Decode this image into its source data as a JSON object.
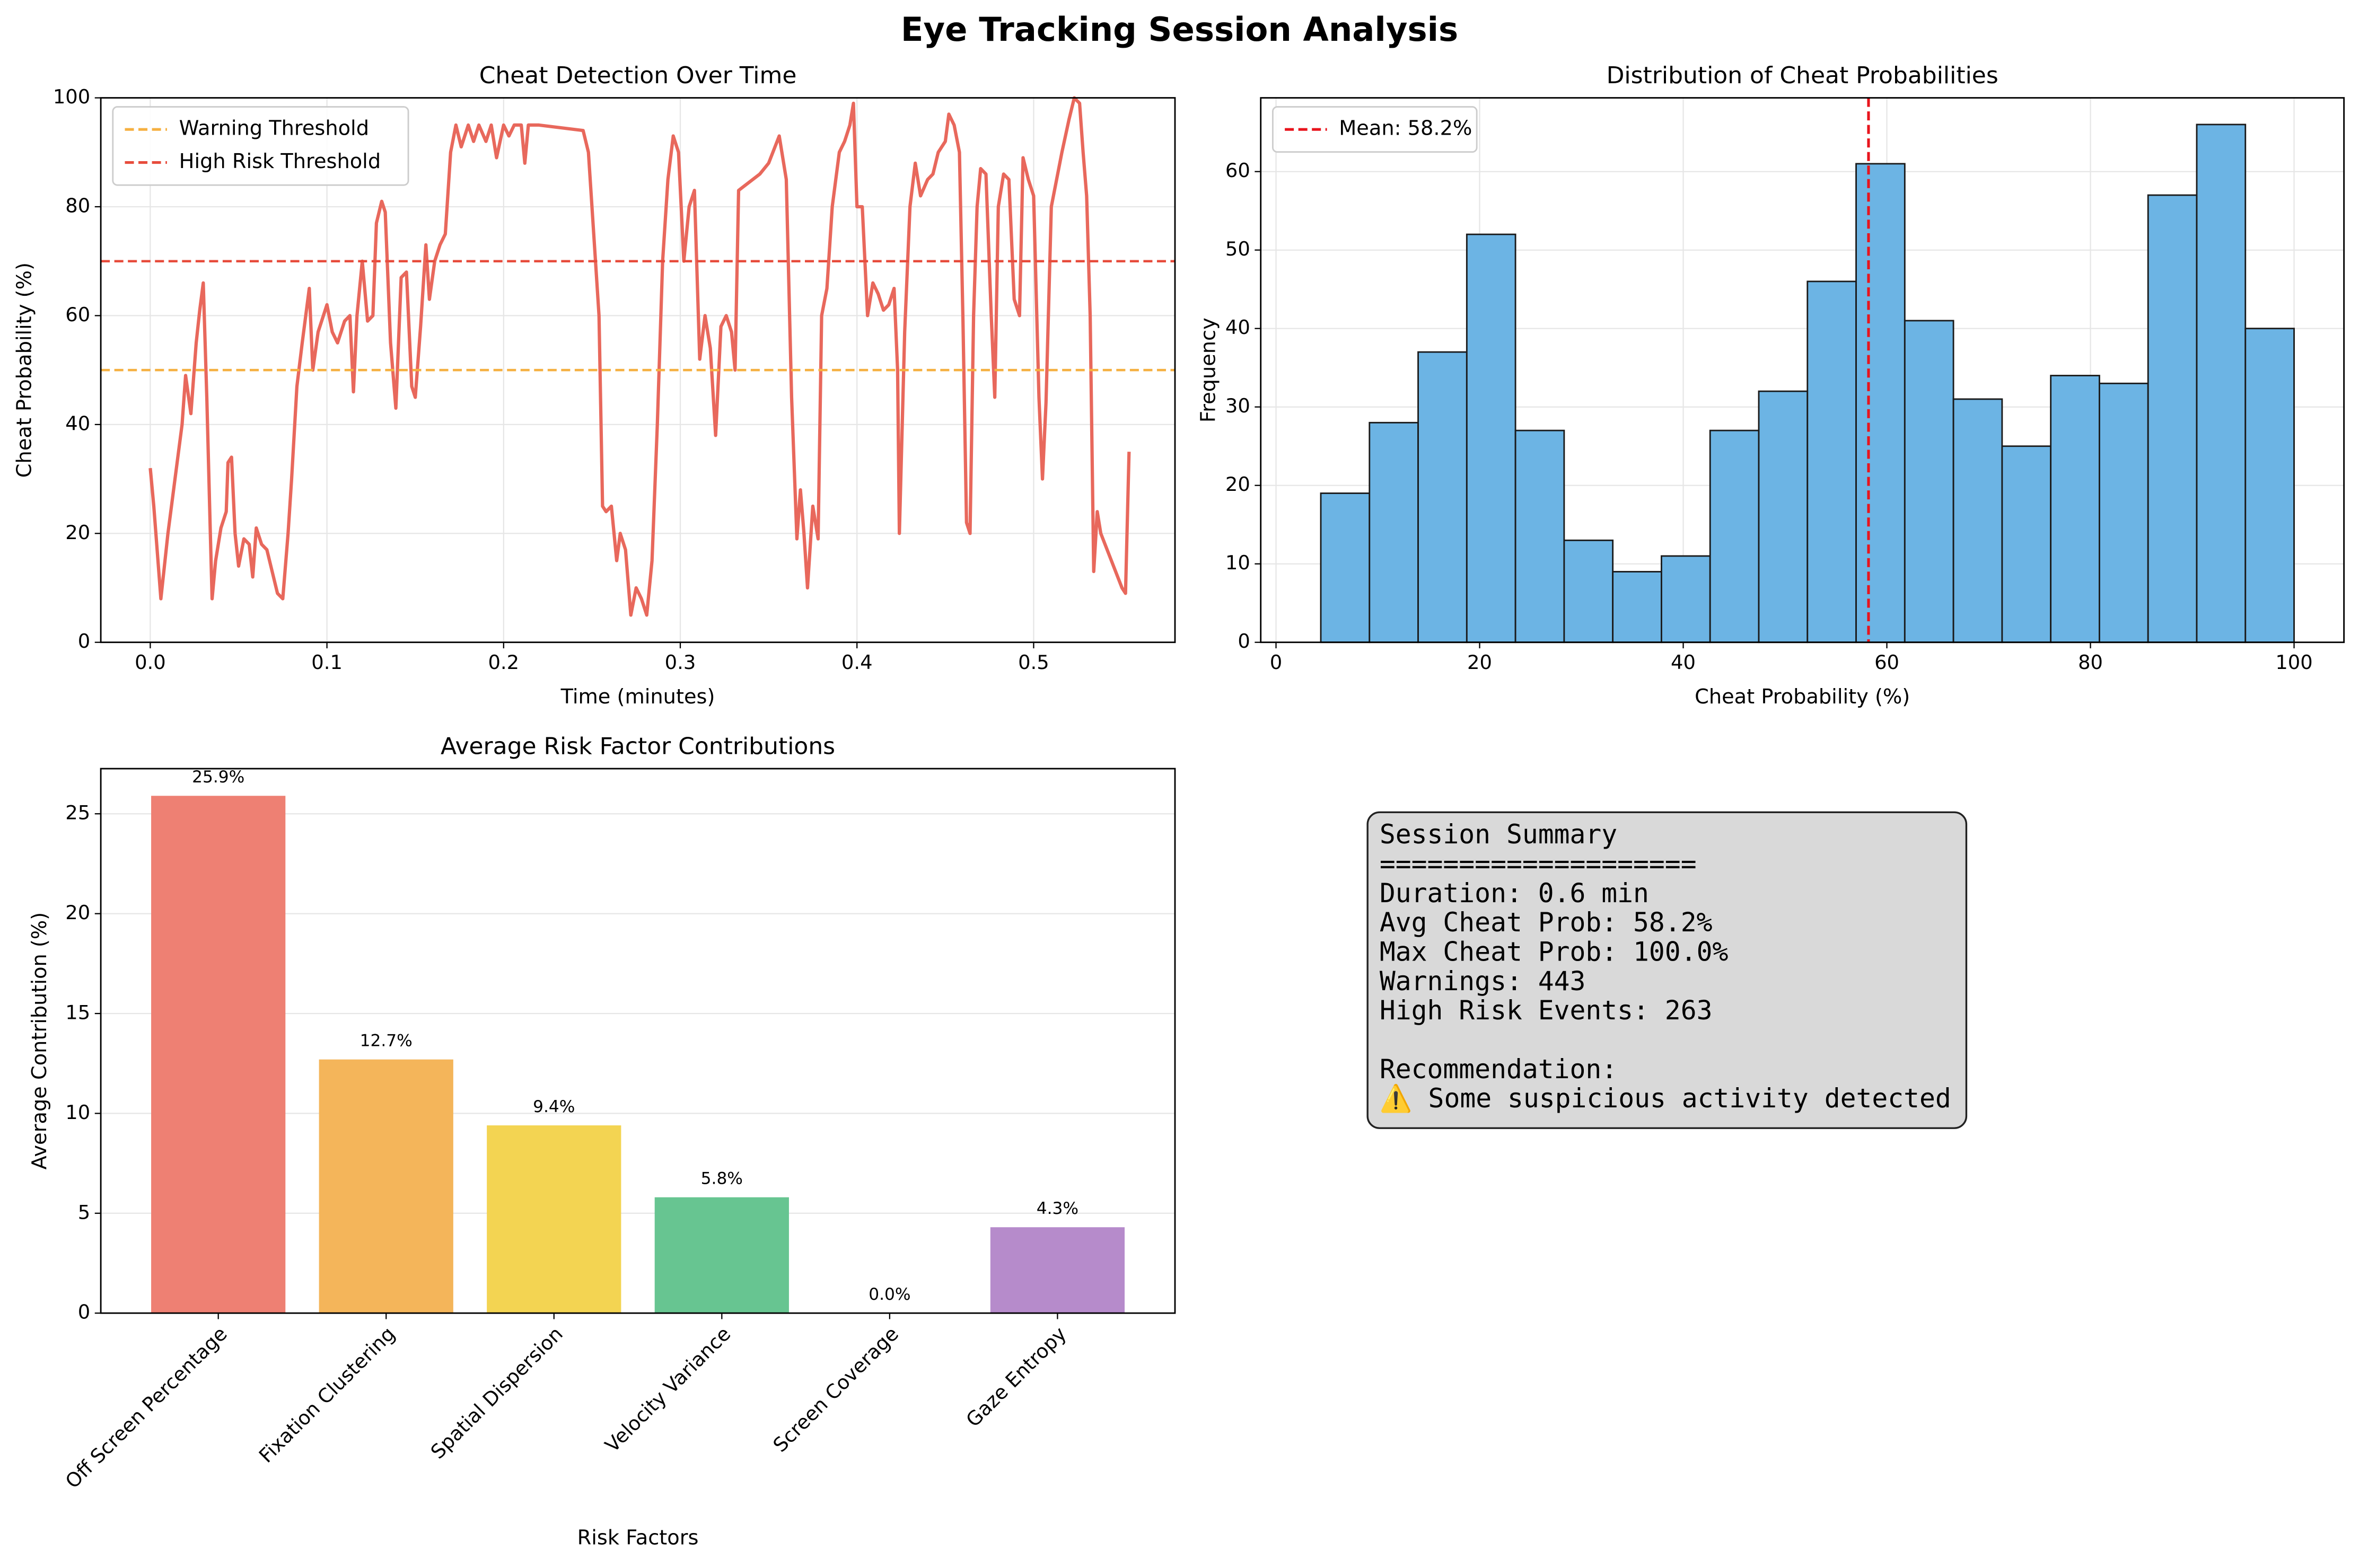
{
  "title": "Eye Tracking Session Analysis",
  "chart_data": [
    {
      "type": "line",
      "title": "Cheat Detection Over Time",
      "xlabel": "Time (minutes)",
      "ylabel": "Cheat Probability (%)",
      "color": "#e8685c",
      "grid": "both",
      "legend": "upper left",
      "xlim": [
        -0.028,
        0.58
      ],
      "xticks": [
        {
          "value": 0,
          "label": "0.0"
        },
        0.1,
        0.2,
        0.3,
        0.4,
        0.5
      ],
      "ylim": [
        0,
        100
      ],
      "yticks": [
        0,
        20,
        40,
        60,
        80,
        100
      ],
      "hlines": [
        {
          "name": "Warning Threshold",
          "value": 50,
          "color": "#f5b041"
        },
        {
          "name": "High Risk Threshold",
          "value": 70,
          "color": "#e74c3c"
        }
      ],
      "x": [
        0.0,
        0.002,
        0.006,
        0.01,
        0.014,
        0.018,
        0.02,
        0.023,
        0.026,
        0.028,
        0.03,
        0.032,
        0.034,
        0.035,
        0.037,
        0.04,
        0.043,
        0.044,
        0.046,
        0.048,
        0.05,
        0.053,
        0.056,
        0.058,
        0.06,
        0.063,
        0.066,
        0.069,
        0.072,
        0.075,
        0.078,
        0.08,
        0.083,
        0.086,
        0.09,
        0.092,
        0.095,
        0.1,
        0.103,
        0.106,
        0.11,
        0.113,
        0.115,
        0.117,
        0.12,
        0.123,
        0.126,
        0.128,
        0.131,
        0.133,
        0.136,
        0.139,
        0.142,
        0.145,
        0.148,
        0.15,
        0.153,
        0.156,
        0.158,
        0.161,
        0.164,
        0.167,
        0.17,
        0.173,
        0.176,
        0.18,
        0.183,
        0.186,
        0.19,
        0.193,
        0.196,
        0.2,
        0.203,
        0.206,
        0.21,
        0.212,
        0.214,
        0.22,
        0.245,
        0.248,
        0.252,
        0.254,
        0.256,
        0.258,
        0.261,
        0.264,
        0.266,
        0.269,
        0.272,
        0.275,
        0.278,
        0.281,
        0.284,
        0.287,
        0.29,
        0.293,
        0.296,
        0.299,
        0.302,
        0.305,
        0.308,
        0.311,
        0.314,
        0.317,
        0.32,
        0.323,
        0.326,
        0.329,
        0.331,
        0.333,
        0.345,
        0.35,
        0.356,
        0.36,
        0.363,
        0.366,
        0.368,
        0.37,
        0.372,
        0.375,
        0.378,
        0.38,
        0.383,
        0.386,
        0.39,
        0.393,
        0.396,
        0.398,
        0.4,
        0.403,
        0.406,
        0.409,
        0.412,
        0.415,
        0.418,
        0.421,
        0.423,
        0.424,
        0.427,
        0.43,
        0.433,
        0.436,
        0.44,
        0.443,
        0.446,
        0.45,
        0.452,
        0.455,
        0.458,
        0.46,
        0.462,
        0.464,
        0.466,
        0.468,
        0.47,
        0.473,
        0.476,
        0.478,
        0.48,
        0.483,
        0.486,
        0.489,
        0.492,
        0.494,
        0.497,
        0.5,
        0.503,
        0.505,
        0.507,
        0.51,
        0.513,
        0.516,
        0.52,
        0.523,
        0.526,
        0.528,
        0.53,
        0.532,
        0.534,
        0.536,
        0.538,
        0.55,
        0.552,
        0.554
      ],
      "values": [
        32,
        25,
        8,
        20,
        30,
        40,
        49,
        42,
        55,
        61,
        66,
        45,
        20,
        8,
        15,
        21,
        24,
        33,
        34,
        20,
        14,
        19,
        18,
        12,
        21,
        18,
        17,
        13,
        9,
        8,
        20,
        30,
        47,
        55,
        65,
        50,
        57,
        62,
        57,
        55,
        59,
        60,
        46,
        60,
        70,
        59,
        60,
        77,
        81,
        79,
        55,
        43,
        67,
        68,
        47,
        45,
        58,
        73,
        63,
        70,
        73,
        75,
        90,
        95,
        91,
        95,
        92,
        95,
        92,
        95,
        89,
        95,
        93,
        95,
        95,
        88,
        95,
        95,
        94,
        90,
        70,
        60,
        25,
        24,
        25,
        15,
        20,
        17,
        5,
        10,
        8,
        5,
        15,
        40,
        70,
        85,
        93,
        90,
        70,
        80,
        83,
        52,
        60,
        54,
        38,
        58,
        60,
        57,
        50,
        83,
        86,
        88,
        93,
        85,
        45,
        19,
        28,
        20,
        10,
        25,
        19,
        60,
        65,
        80,
        90,
        92,
        95,
        99,
        80,
        80,
        60,
        66,
        64,
        61,
        62,
        65,
        50,
        20,
        57,
        80,
        88,
        82,
        85,
        86,
        90,
        92,
        97,
        95,
        90,
        59,
        22,
        20,
        60,
        80,
        87,
        86,
        60,
        45,
        80,
        86,
        85,
        63,
        60,
        89,
        85,
        82,
        45,
        30,
        44,
        80,
        85,
        90,
        96,
        100,
        99,
        90,
        82,
        60,
        13,
        24,
        20,
        10,
        9,
        35
      ]
    },
    {
      "type": "histogram",
      "title": "Distribution of Cheat Probabilities",
      "xlabel": "Cheat Probability (%)",
      "ylabel": "Frequency",
      "color": "#6cb4e4",
      "edgecolor": "#1a1a1a",
      "grid": "both",
      "legend": "upper left",
      "xlim": [
        -1.5,
        104.9
      ],
      "xticks": [
        0,
        20,
        40,
        60,
        80,
        100
      ],
      "ylim": [
        0,
        69.4
      ],
      "yticks": [
        0,
        10,
        20,
        30,
        40,
        50,
        60
      ],
      "vlines": [
        {
          "name": "Mean: 58.2%",
          "value": 58.2,
          "color": "#e8141c"
        }
      ],
      "bins": [
        4.4,
        9.18,
        13.96,
        18.74,
        23.52,
        28.3,
        33.08,
        37.86,
        42.64,
        47.42,
        52.2,
        56.98,
        61.76,
        66.54,
        71.32,
        76.1,
        80.88,
        85.66,
        90.44,
        95.22,
        100
      ],
      "values": [
        19,
        28,
        37,
        52,
        27,
        13,
        9,
        11,
        27,
        32,
        46,
        61,
        41,
        31,
        25,
        34,
        33,
        57,
        66,
        40
      ]
    },
    {
      "type": "bar",
      "title": "Average Risk Factor Contributions",
      "xlabel": "Risk Factors",
      "ylabel": "Average Contribution (%)",
      "grid": "y",
      "ylim": [
        0,
        27.26
      ],
      "yticks": [
        0,
        5,
        10,
        15,
        20,
        25
      ],
      "categories": [
        "Off Screen Percentage",
        "Fixation Clustering",
        "Spatial Dispersion",
        "Velocity Variance",
        "Screen Coverage",
        "Gaze Entropy"
      ],
      "values": [
        25.9,
        12.7,
        9.4,
        5.8,
        0.0,
        4.3
      ],
      "value_labels": [
        "25.9%",
        "12.7%",
        "9.4%",
        "5.8%",
        "0.0%",
        "4.3%"
      ],
      "colors": [
        "#ee8073",
        "#f4b55a",
        "#f3d452",
        "#67c591",
        "#6fa8dc",
        "#b68bcb"
      ]
    }
  ],
  "summary": {
    "title": "Session Summary",
    "divider": "====================",
    "lines": [
      "Duration: 0.6 min",
      "Avg Cheat Prob: 58.2%",
      "Max Cheat Prob: 100.0%",
      "Warnings: 443",
      "High Risk Events: 263"
    ],
    "recommendation_title": "Recommendation:",
    "recommendation": "⚠️ Some suspicious activity detected"
  }
}
